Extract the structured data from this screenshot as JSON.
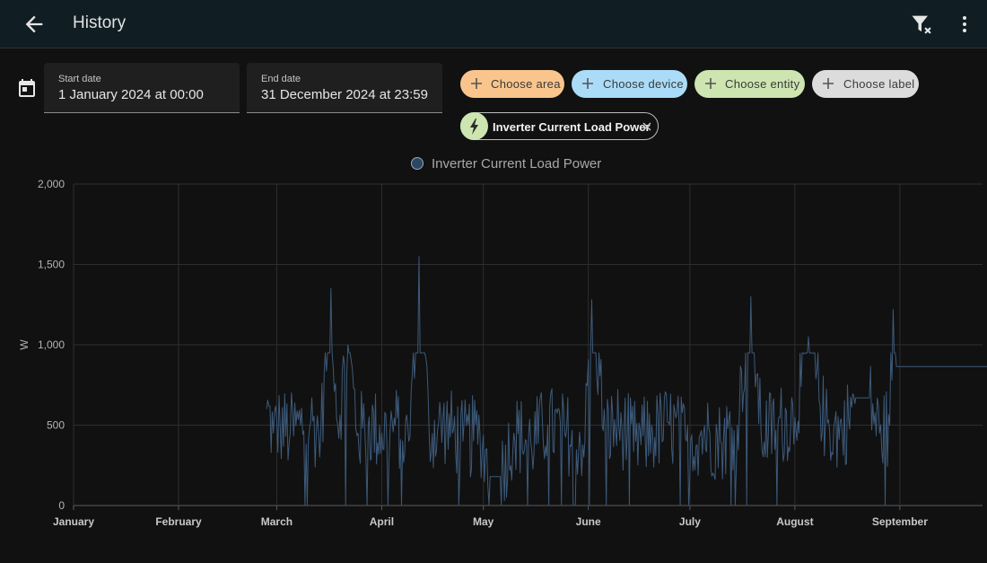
{
  "header": {
    "title": "History",
    "back_icon": "arrow-left-icon",
    "filter_icon": "filter-remove-icon",
    "menu_icon": "dots-vertical-icon",
    "background": "#101e24"
  },
  "date_picker": {
    "icon": "calendar-icon",
    "start": {
      "label": "Start date",
      "value": "1 January 2024 at 00:00"
    },
    "end": {
      "label": "End date",
      "value": "31 December 2024 at 23:59"
    }
  },
  "target_chips": [
    {
      "label": "Choose area",
      "color": "#f9c58c",
      "icon": "plus-icon"
    },
    {
      "label": "Choose device",
      "color": "#aadcf7",
      "icon": "plus-icon"
    },
    {
      "label": "Choose entity",
      "color": "#cde5b0",
      "icon": "plus-icon"
    },
    {
      "label": "Choose label",
      "color": "#dcdcdc",
      "icon": "plus-icon"
    }
  ],
  "selected_entity": {
    "label": "Inverter Current Load Power",
    "icon": "lightning-bolt-icon",
    "remove_icon": "close-icon"
  },
  "chart_data": {
    "type": "line",
    "title": "",
    "legend": {
      "entries": [
        "Inverter Current Load Power"
      ],
      "position": "top-center",
      "color": "#2c4763"
    },
    "xlabel": "",
    "ylabel": "W",
    "yticks": [
      "0",
      "500",
      "1,000",
      "1,500",
      "2,000"
    ],
    "ylim": [
      0,
      2000
    ],
    "xticks": [
      "January",
      "February",
      "March",
      "April",
      "May",
      "June",
      "July",
      "August",
      "September"
    ],
    "grid": true,
    "series_color": "#3d5a7a",
    "series": [
      {
        "name": "Inverter Current Load Power",
        "points": [
          [
            "2024-02-27",
            600
          ],
          [
            "2024-02-29",
            450
          ],
          [
            "2024-03-02",
            500
          ],
          [
            "2024-03-05",
            450
          ],
          [
            "2024-03-08",
            500
          ],
          [
            "2024-03-11",
            520
          ],
          [
            "2024-03-14",
            450
          ],
          [
            "2024-03-17",
            1350
          ],
          [
            "2024-03-19",
            500
          ],
          [
            "2024-03-22",
            1000
          ],
          [
            "2024-03-25",
            450
          ],
          [
            "2024-03-28",
            500
          ],
          [
            "2024-04-01",
            450
          ],
          [
            "2024-04-05",
            500
          ],
          [
            "2024-04-09",
            400
          ],
          [
            "2024-04-12",
            1550
          ],
          [
            "2024-04-15",
            450
          ],
          [
            "2024-04-20",
            500
          ],
          [
            "2024-04-25",
            400
          ],
          [
            "2024-04-30",
            450
          ],
          [
            "2024-05-03",
            180
          ],
          [
            "2024-05-06",
            180
          ],
          [
            "2024-05-10",
            450
          ],
          [
            "2024-05-15",
            400
          ],
          [
            "2024-05-20",
            500
          ],
          [
            "2024-05-25",
            450
          ],
          [
            "2024-05-31",
            400
          ],
          [
            "2024-06-02",
            1280
          ],
          [
            "2024-06-06",
            450
          ],
          [
            "2024-06-10",
            500
          ],
          [
            "2024-06-15",
            400
          ],
          [
            "2024-06-20",
            450
          ],
          [
            "2024-06-25",
            500
          ],
          [
            "2024-06-30",
            400
          ],
          [
            "2024-07-05",
            450
          ],
          [
            "2024-07-10",
            400
          ],
          [
            "2024-07-15",
            500
          ],
          [
            "2024-07-19",
            1300
          ],
          [
            "2024-07-22",
            450
          ],
          [
            "2024-07-27",
            500
          ],
          [
            "2024-08-01",
            550
          ],
          [
            "2024-08-05",
            1050
          ],
          [
            "2024-08-10",
            500
          ],
          [
            "2024-08-15",
            450
          ],
          [
            "2024-08-19",
            670
          ],
          [
            "2024-08-23",
            670
          ],
          [
            "2024-08-26",
            450
          ],
          [
            "2024-08-29",
            500
          ],
          [
            "2024-08-30",
            1220
          ],
          [
            "2024-08-31",
            865
          ],
          [
            "2024-09-30",
            865
          ]
        ]
      }
    ]
  }
}
